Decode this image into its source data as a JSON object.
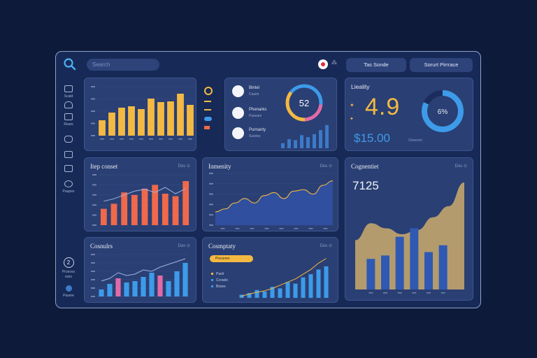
{
  "header": {
    "search_placeholder": "Search",
    "pill_1": "Tas Sonde",
    "pill_2": "Sorurt Pirrrace"
  },
  "sidebar": {
    "items": [
      {
        "label": "Scald"
      },
      {
        "label": ""
      },
      {
        "label": "Rears"
      },
      {
        "label": ""
      },
      {
        "label": ""
      },
      {
        "label": ""
      },
      {
        "label": "Paupes"
      }
    ],
    "bottom_badge": "2",
    "bottom_label_1": "Prosvos",
    "bottom_label_2": "ears",
    "bottom_label_3": "Pasere"
  },
  "cards": {
    "top_left": {
      "legend": [
        "",
        "",
        "",
        ""
      ]
    },
    "top_middle": {
      "rows": [
        {
          "label": "Bintel",
          "sub": "Casen"
        },
        {
          "label": "Phenarks",
          "sub": "Paseam"
        },
        {
          "label": "Purnanty",
          "sub": "Suiotos"
        }
      ],
      "donut_value": "52"
    },
    "top_right": {
      "title": "Lieality",
      "big_value": "4.9",
      "money": "$15.00",
      "money_sub": "Oreerent",
      "donut_label": "6%",
      "donut_fraction": 0.82
    },
    "mid_left": {
      "title": "Itep conset",
      "menu": "Dos ⊙"
    },
    "mid_middle": {
      "title": "Inmenity",
      "menu": "Dos ⊙"
    },
    "right": {
      "title": "Cognentiet",
      "menu": "Dos ⊙",
      "value": "7125"
    },
    "bot_left": {
      "title": "Cosnulrs",
      "menu": "Dos ⊙"
    },
    "bot_middle": {
      "title": "Cosmptaty",
      "menu": "Dos ⊙",
      "badge": "Pisconen",
      "list": [
        "Paslr",
        "Ccraslo",
        "Bsses"
      ]
    }
  },
  "colors": {
    "background": "#0e1a3a",
    "frame": "#172a57",
    "card": "#2a3f73",
    "yellow": "#f4b942",
    "orange": "#f0694a",
    "blue": "#3d9be9",
    "pink": "#e06aa8",
    "tan": "#b49b6e",
    "navy_bar": "#2f59b3"
  },
  "chart_data": [
    {
      "type": "bar",
      "values": [
        22,
        33,
        40,
        42,
        38,
        53,
        48,
        49,
        60,
        44
      ],
      "color": "#f4b942",
      "ylim": [
        0,
        70
      ]
    },
    {
      "type": "bar",
      "values": [
        5,
        9,
        8,
        13,
        11,
        14,
        18,
        23
      ],
      "color": "#3d7ac8",
      "ylim": [
        0,
        25
      ]
    },
    {
      "type": "bar",
      "values": [
        26,
        34,
        52,
        48,
        58,
        64,
        50,
        46,
        70
      ],
      "line": [
        38,
        42,
        48,
        54,
        57,
        52,
        60,
        50,
        58
      ],
      "color": "#f0694a",
      "ylim": [
        0,
        80
      ]
    },
    {
      "type": "area",
      "values": [
        18,
        22,
        30,
        36,
        30,
        40,
        44,
        36,
        46,
        48,
        42,
        54,
        60
      ],
      "color": "#304f9f",
      "ylim": [
        0,
        70
      ]
    },
    {
      "type": "bar",
      "categories": [
        "",
        "",
        "",
        "",
        "",
        ""
      ],
      "values": [
        36,
        40,
        62,
        72,
        44,
        52
      ],
      "area": [
        58,
        78,
        72,
        65,
        70,
        85,
        98,
        126
      ],
      "color": "#2f59b3",
      "ylim": [
        0,
        130
      ]
    },
    {
      "type": "bar",
      "values": [
        10,
        18,
        26,
        20,
        22,
        28,
        34,
        30,
        22,
        36,
        48
      ],
      "highlight": [
        2,
        7
      ],
      "line": [
        22,
        26,
        34,
        30,
        32,
        38,
        36,
        42,
        46,
        50,
        54
      ],
      "color": "#3d9be9",
      "ylim": [
        0,
        60
      ]
    },
    {
      "type": "bar",
      "values": [
        4,
        6,
        10,
        8,
        14,
        12,
        20,
        18,
        26,
        30,
        36,
        40
      ],
      "line": [
        2,
        5,
        7,
        9,
        12,
        16,
        20,
        24,
        30,
        36,
        44,
        50
      ],
      "color": "#3d9be9",
      "ylim": [
        0,
        55
      ]
    }
  ]
}
